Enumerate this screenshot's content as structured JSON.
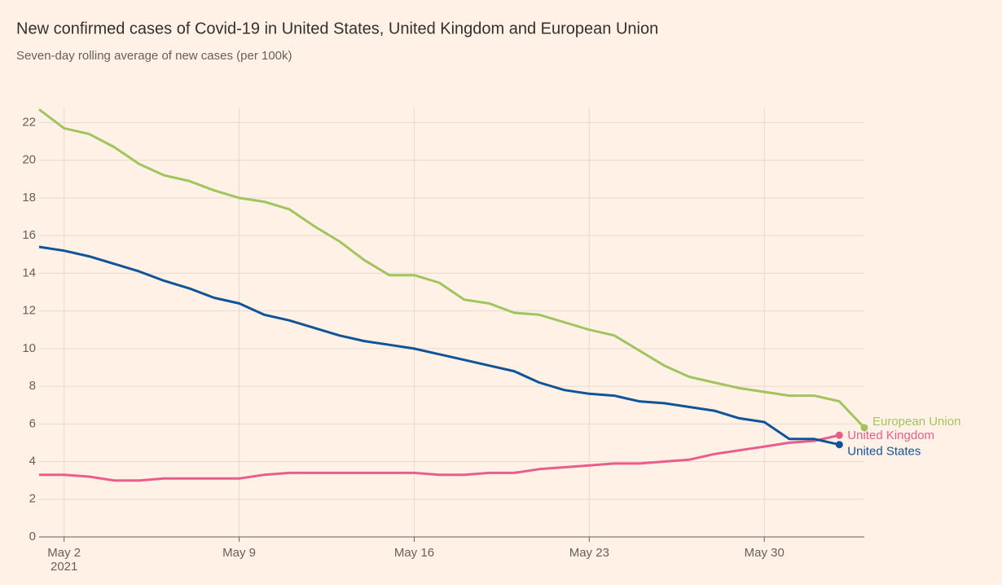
{
  "chart_data": {
    "type": "line",
    "title": "New confirmed cases of Covid-19 in United States, United Kingdom and European Union",
    "subtitle": "Seven-day rolling average of new cases (per 100k)",
    "x": [
      "2021-05-01",
      "2021-05-02",
      "2021-05-03",
      "2021-05-04",
      "2021-05-05",
      "2021-05-06",
      "2021-05-07",
      "2021-05-08",
      "2021-05-09",
      "2021-05-10",
      "2021-05-11",
      "2021-05-12",
      "2021-05-13",
      "2021-05-14",
      "2021-05-15",
      "2021-05-16",
      "2021-05-17",
      "2021-05-18",
      "2021-05-19",
      "2021-05-20",
      "2021-05-21",
      "2021-05-22",
      "2021-05-23",
      "2021-05-24",
      "2021-05-25",
      "2021-05-26",
      "2021-05-27",
      "2021-05-28",
      "2021-05-29",
      "2021-05-30",
      "2021-05-31",
      "2021-06-01",
      "2021-06-02",
      "2021-06-03"
    ],
    "series": [
      {
        "name": "European Union",
        "color": "#a0c55f",
        "values": [
          22.7,
          21.7,
          21.4,
          20.7,
          19.8,
          19.2,
          18.9,
          18.4,
          18.0,
          17.8,
          17.4,
          16.5,
          15.7,
          14.7,
          13.9,
          13.9,
          13.5,
          12.6,
          12.4,
          11.9,
          11.8,
          11.4,
          11.0,
          10.7,
          9.9,
          9.1,
          8.5,
          8.2,
          7.9,
          7.7,
          7.5,
          7.5,
          7.2,
          5.8
        ]
      },
      {
        "name": "United Kingdom",
        "color": "#e95d8c",
        "values": [
          3.3,
          3.3,
          3.2,
          3.0,
          3.0,
          3.1,
          3.1,
          3.1,
          3.1,
          3.3,
          3.4,
          3.4,
          3.4,
          3.4,
          3.4,
          3.4,
          3.3,
          3.3,
          3.4,
          3.4,
          3.6,
          3.7,
          3.8,
          3.9,
          3.9,
          4.0,
          4.1,
          4.4,
          4.6,
          4.8,
          5.0,
          5.1,
          5.4,
          null
        ]
      },
      {
        "name": "United States",
        "color": "#0f5499",
        "values": [
          15.4,
          15.2,
          14.9,
          14.5,
          14.1,
          13.6,
          13.2,
          12.7,
          12.4,
          11.8,
          11.5,
          11.1,
          10.7,
          10.4,
          10.2,
          10.0,
          9.7,
          9.4,
          9.1,
          8.8,
          8.2,
          7.8,
          7.6,
          7.5,
          7.2,
          7.1,
          6.9,
          6.7,
          6.3,
          6.1,
          5.2,
          5.2,
          4.9,
          null
        ]
      }
    ],
    "xlim": [
      "2021-05-01",
      "2021-06-03"
    ],
    "xticks": [
      {
        "value": "2021-05-02",
        "label": "May 2"
      },
      {
        "value": "2021-05-09",
        "label": "May 9"
      },
      {
        "value": "2021-05-16",
        "label": "May 16"
      },
      {
        "value": "2021-05-23",
        "label": "May 23"
      },
      {
        "value": "2021-05-30",
        "label": "May 30"
      }
    ],
    "x_year": "2021",
    "ylim": [
      0,
      22.8
    ],
    "yticks": [
      0,
      2,
      4,
      6,
      8,
      10,
      12,
      14,
      16,
      18,
      20,
      22
    ],
    "grid": true
  }
}
